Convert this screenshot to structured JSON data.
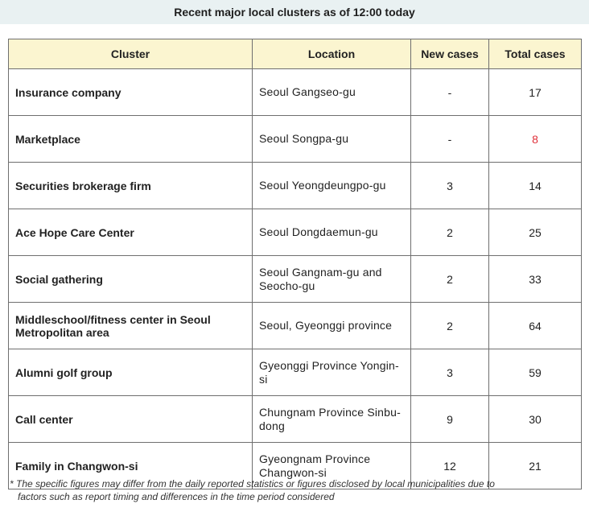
{
  "title": "Recent major local clusters as of 12:00 today",
  "table": {
    "headers": [
      "Cluster",
      "Location",
      "New cases",
      "Total cases"
    ],
    "rows": [
      {
        "cluster": "Insurance company",
        "location": "Seoul Gangseo-gu",
        "new_cases": "-",
        "total_cases": "17"
      },
      {
        "cluster": "Marketplace",
        "location": "Seoul Songpa-gu",
        "new_cases": "-",
        "total_cases": "8",
        "total_color": "#e0303a"
      },
      {
        "cluster": "Securities brokerage firm",
        "location": "Seoul Yeongdeungpo-gu",
        "new_cases": "3",
        "total_cases": "14"
      },
      {
        "cluster": "Ace Hope Care Center",
        "location": "Seoul Dongdaemun-gu",
        "new_cases": "2",
        "total_cases": "25"
      },
      {
        "cluster": "Social gathering",
        "location": "Seoul Gangnam-gu and Seocho-gu",
        "new_cases": "2",
        "total_cases": "33"
      },
      {
        "cluster": "Middleschool/fitness center in Seoul Metropolitan area",
        "location": "Seoul, Gyeonggi province",
        "new_cases": "2",
        "total_cases": "64"
      },
      {
        "cluster": "Alumni golf group",
        "location": "Gyeonggi Province Yongin-si",
        "new_cases": "3",
        "total_cases": "59"
      },
      {
        "cluster": "Call center",
        "location": "Chungnam Province Sinbu-dong",
        "new_cases": "9",
        "total_cases": "30"
      },
      {
        "cluster": "Family in Changwon-si",
        "location": "Gyeongnam Province Changwon-si",
        "new_cases": "12",
        "total_cases": "21"
      }
    ]
  },
  "footnote": "* The specific figures may differ from the daily reported statistics or figures disclosed by local municipalities due to factors such as report timing and differences in the time period considered",
  "footnote_lines": [
    "* The specific figures may differ from the daily reported statistics or figures disclosed by local municipalities due to",
    "factors such as report timing and differences in the time period considered"
  ],
  "colors": {
    "title_background": "#e9f1f2",
    "header_background": "#fbf5d0",
    "highlight": "#e0303a"
  }
}
